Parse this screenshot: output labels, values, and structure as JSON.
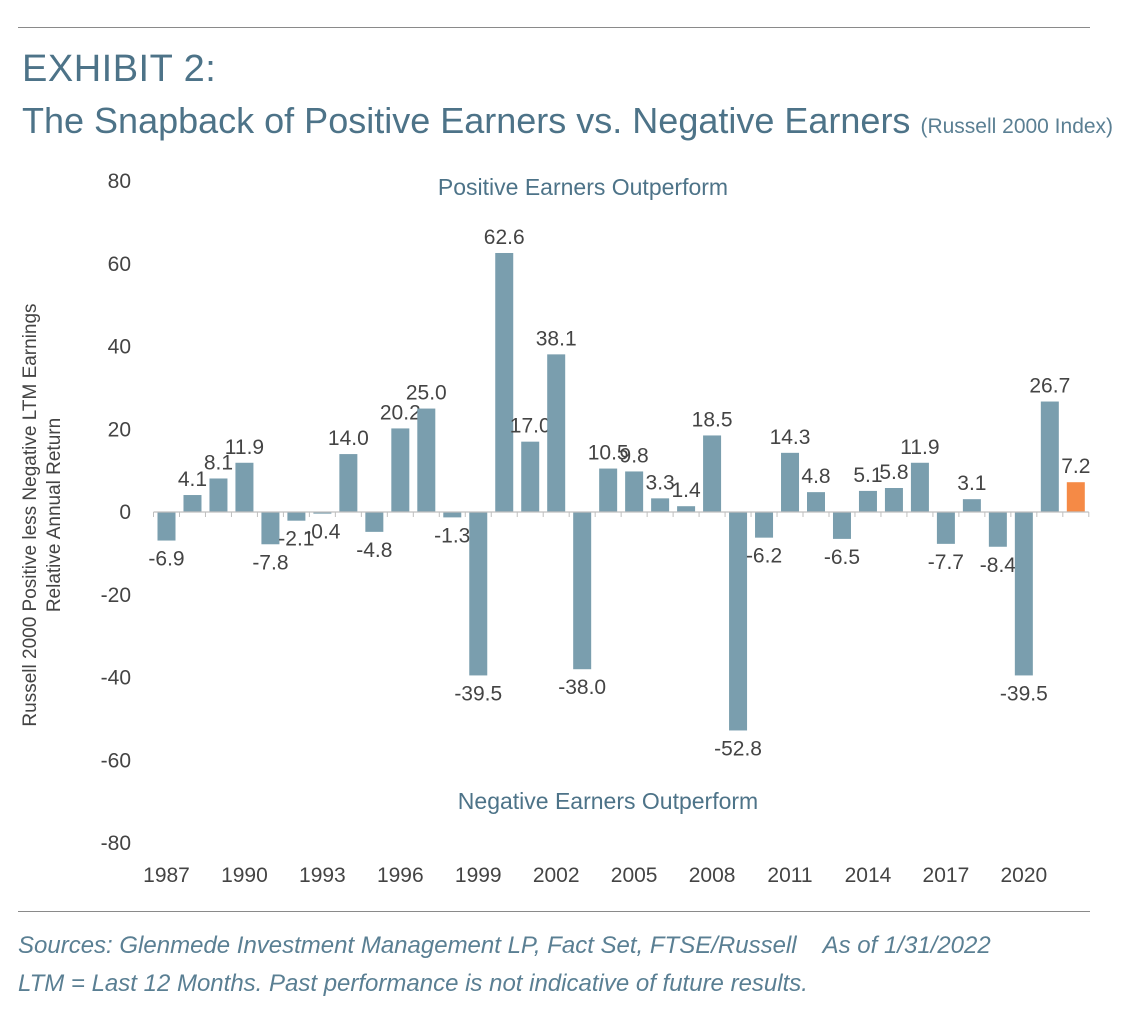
{
  "header": {
    "exhibit": "EXHIBIT 2:",
    "title": "The Snapback of Positive Earners vs. Negative Earners",
    "subtitle": "(Russell 2000 Index)"
  },
  "footer": {
    "sources": "Sources:  Glenmede Investment Management LP, Fact Set, FTSE/Russell",
    "as_of": "As of 1/31/2022",
    "note": "LTM = Last 12 Months. Past performance is not indicative of future results."
  },
  "colors": {
    "bar": "#7a9eae",
    "highlight": "#f58a46",
    "title": "#4d7388"
  },
  "chart_data": {
    "type": "bar",
    "ylabel_line1": "Russell 2000 Positive less Negative LTM Earnings",
    "ylabel_line2": "Relative Annual Return",
    "ylim": [
      -80,
      80
    ],
    "yticks": [
      80,
      60,
      40,
      20,
      0,
      -20,
      -40,
      -60,
      -80
    ],
    "grid": false,
    "annotation_top": "Positive Earners Outperform",
    "annotation_bottom": "Negative Earners Outperform",
    "categories": [
      1987,
      1988,
      1989,
      1990,
      1991,
      1992,
      1993,
      1994,
      1995,
      1996,
      1997,
      1998,
      1999,
      2000,
      2001,
      2002,
      2003,
      2004,
      2005,
      2006,
      2007,
      2008,
      2009,
      2010,
      2011,
      2012,
      2013,
      2014,
      2015,
      2016,
      2017,
      2018,
      2019,
      2020,
      2021,
      2022
    ],
    "xtick_labels": [
      "1987",
      "1990",
      "1993",
      "1996",
      "1999",
      "2002",
      "2005",
      "2008",
      "2011",
      "2014",
      "2017",
      "2020"
    ],
    "values": [
      -6.9,
      4.1,
      8.1,
      11.9,
      -7.8,
      -2.1,
      -0.4,
      14.0,
      -4.8,
      20.2,
      25.0,
      -1.3,
      -39.5,
      62.6,
      17.0,
      38.1,
      -38.0,
      10.5,
      9.8,
      3.3,
      1.4,
      18.5,
      -52.8,
      -6.2,
      14.3,
      4.8,
      -6.5,
      5.1,
      5.8,
      11.9,
      -7.7,
      3.1,
      -8.4,
      -39.5,
      26.7,
      7.2
    ],
    "value_labels": [
      "-6.9",
      "4.1",
      "8.1",
      "11.9",
      "-7.8",
      "-2.1",
      "-0.4",
      "14.0",
      "-4.8",
      "20.2",
      "25.0",
      "-1.3",
      "-39.5",
      "62.6",
      "17.0",
      "38.1",
      "-38.0",
      "10.5",
      "9.8",
      "3.3",
      "1.4",
      "18.5",
      "-52.8",
      "-6.2",
      "14.3",
      "4.8",
      "-6.5",
      "5.1",
      "5.8",
      "11.9",
      "-7.7",
      "3.1",
      "-8.4",
      "-39.5",
      "26.7",
      "7.2"
    ],
    "highlight_index": 35
  }
}
